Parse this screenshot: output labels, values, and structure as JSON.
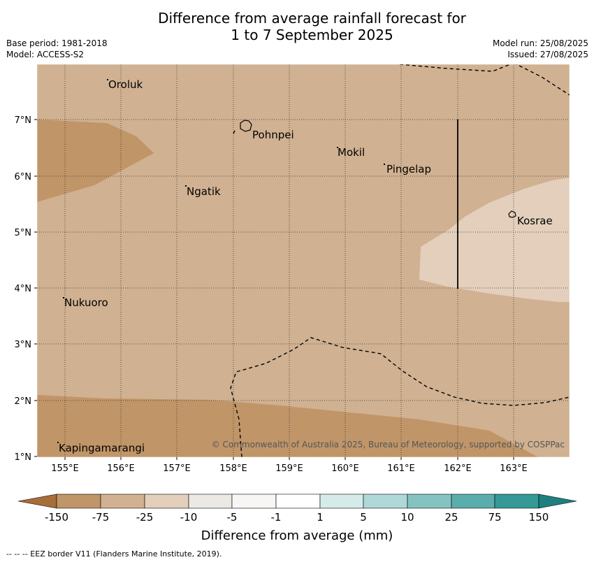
{
  "title_line1": "Difference from average rainfall forecast for",
  "title_line2": "1 to 7 September 2025",
  "base_period": "Base period: 1981-2018",
  "model": "Model: ACCESS-S2",
  "model_run": "Model run: 25/08/2025",
  "issued": "Issued: 27/08/2025",
  "map": {
    "lon_labels": [
      "155°E",
      "156°E",
      "157°E",
      "158°E",
      "159°E",
      "160°E",
      "161°E",
      "162°E",
      "163°E"
    ],
    "lat_labels": [
      "7°N",
      "6°N",
      "5°N",
      "4°N",
      "3°N",
      "2°N",
      "1°N"
    ],
    "places": [
      "Oroluk",
      "Pohnpei",
      "Mokil",
      "Pingelap",
      "Ngatik",
      "Kosrae",
      "Nukuoro",
      "Kapingamarangi"
    ],
    "copyright": "© Commonwealth of Australia 2025, Bureau of Meteorology, supported by COSPPac",
    "colors": {
      "minus_25_to_10": "#d0b191",
      "minus_75_to_25": "#c09568",
      "minus_10_to_5": "#e3cfbb",
      "eez_line": "#000000"
    }
  },
  "colorbar": {
    "title": "Difference from average (mm)",
    "labels": [
      "-150",
      "-75",
      "-25",
      "-10",
      "-5",
      "-1",
      "1",
      "5",
      "10",
      "25",
      "75",
      "150"
    ],
    "colors": [
      "#a86e38",
      "#c09568",
      "#d0b191",
      "#e3cfbb",
      "#ece9e4",
      "#ffffff",
      "#d5ebe9",
      "#b0d8d6",
      "#84c3c1",
      "#5badab",
      "#359997",
      "#1e807e"
    ]
  },
  "footer": "--  --  -- EEZ border V11 (Flanders Marine Institute, 2019)."
}
